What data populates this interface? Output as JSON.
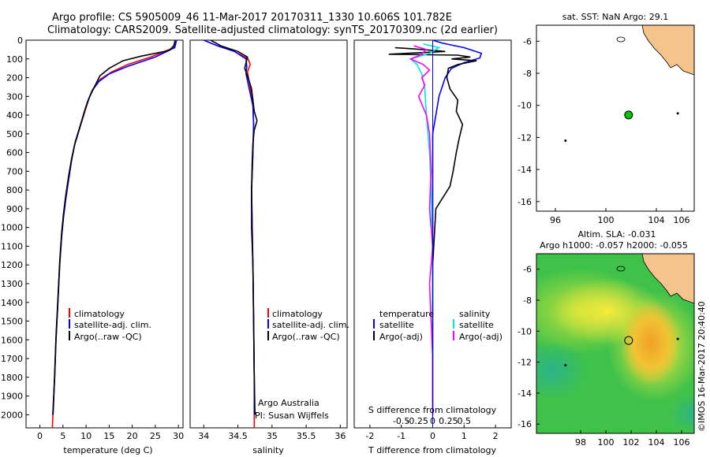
{
  "header": {
    "title1": "Argo profile: CS 5905009_46 11-Mar-2017 20170311_1330 10.606S 101.782E",
    "title2": "Climatology: CARS2009. Satellite-adjusted climatology: synTS_20170309.nc (2d earlier)"
  },
  "colors": {
    "climatology": "#ff0000",
    "satellite": "#0000ff",
    "argo": "#000000",
    "sal_satellite": "#00e5e5",
    "sal_argo": "#ff00ff",
    "land": "#f5c38c",
    "station": "#00c800"
  },
  "chart_data": [
    {
      "id": "temperature",
      "type": "line",
      "xlabel": "temperature (deg C)",
      "ylabel": "",
      "xlim": [
        -3,
        31
      ],
      "ylim": [
        2070,
        0
      ],
      "xticks": [
        0,
        5,
        10,
        15,
        20,
        25,
        30
      ],
      "xtick_labels": [
        "0",
        "5",
        "10",
        "15",
        "20",
        "25",
        "30"
      ],
      "yticks": [
        0,
        100,
        200,
        300,
        400,
        500,
        600,
        700,
        800,
        900,
        1000,
        1100,
        1200,
        1300,
        1400,
        1500,
        1600,
        1700,
        1800,
        1900,
        2000
      ],
      "ytick_labels": [
        "0",
        "100",
        "200",
        "300",
        "400",
        "500",
        "600",
        "700",
        "800",
        "900",
        "1000",
        "1100",
        "1200",
        "1300",
        "1400",
        "1500",
        "1600",
        "1700",
        "1800",
        "1900",
        "2000"
      ],
      "legend": [
        "climatology",
        "satellite-adj. clim.",
        "Argo(..raw -QC)"
      ],
      "series": [
        {
          "name": "climatology",
          "color": "#ff0000",
          "points": [
            [
              29.5,
              0
            ],
            [
              29,
              40
            ],
            [
              24,
              90
            ],
            [
              19,
              130
            ],
            [
              15.5,
              170
            ],
            [
              13,
              210
            ],
            [
              11.5,
              260
            ],
            [
              10.5,
              320
            ],
            [
              9.5,
              400
            ],
            [
              8.5,
              480
            ],
            [
              7.5,
              560
            ],
            [
              6.8,
              650
            ],
            [
              6.2,
              750
            ],
            [
              5.6,
              850
            ],
            [
              5.1,
              950
            ],
            [
              4.7,
              1050
            ],
            [
              4.3,
              1200
            ],
            [
              3.9,
              1400
            ],
            [
              3.5,
              1600
            ],
            [
              3.2,
              1800
            ],
            [
              2.9,
              1950
            ],
            [
              2.7,
              2070
            ]
          ]
        },
        {
          "name": "satellite-adj. clim.",
          "color": "#0000ff",
          "points": [
            [
              29.6,
              0
            ],
            [
              29.2,
              40
            ],
            [
              25,
              90
            ],
            [
              19,
              140
            ],
            [
              15,
              180
            ],
            [
              12.8,
              220
            ],
            [
              11.3,
              270
            ],
            [
              10.3,
              330
            ],
            [
              9.4,
              400
            ],
            [
              8.5,
              480
            ],
            [
              7.5,
              560
            ],
            [
              6.8,
              650
            ],
            [
              6.2,
              750
            ],
            [
              5.6,
              850
            ],
            [
              5.1,
              950
            ],
            [
              4.7,
              1050
            ],
            [
              4.3,
              1200
            ],
            [
              3.9,
              1400
            ],
            [
              3.5,
              1600
            ],
            [
              3.2,
              1800
            ],
            [
              2.9,
              1950
            ],
            [
              2.8,
              2000
            ]
          ]
        },
        {
          "name": "Argo(..raw -QC)",
          "color": "#000000",
          "points": [
            [
              29.3,
              0
            ],
            [
              29,
              30
            ],
            [
              28,
              55
            ],
            [
              22,
              85
            ],
            [
              18,
              110
            ],
            [
              15,
              150
            ],
            [
              13,
              190
            ],
            [
              12,
              240
            ],
            [
              10.8,
              300
            ],
            [
              9.8,
              370
            ],
            [
              8.8,
              450
            ],
            [
              7.7,
              540
            ],
            [
              6.9,
              630
            ],
            [
              6.2,
              730
            ],
            [
              5.6,
              830
            ],
            [
              5.1,
              930
            ],
            [
              4.7,
              1030
            ],
            [
              4.3,
              1180
            ],
            [
              3.9,
              1380
            ],
            [
              3.5,
              1580
            ],
            [
              3.2,
              1780
            ],
            [
              2.95,
              1950
            ],
            [
              2.85,
              2000
            ]
          ]
        }
      ]
    },
    {
      "id": "salinity",
      "type": "line",
      "xlabel": "salinity",
      "ylabel": "",
      "xlim": [
        33.8,
        36.1
      ],
      "ylim": [
        2070,
        0
      ],
      "xticks": [
        34,
        34.5,
        35,
        35.5,
        36
      ],
      "xtick_labels": [
        "34",
        "34.5",
        "35",
        "35.5",
        "36"
      ],
      "legend": [
        "climatology",
        "satellite-adj. clim.",
        "Argo(..raw -QC)"
      ],
      "annotation": [
        "Argo Australia",
        "PI: Susan Wijffels"
      ],
      "series": [
        {
          "name": "climatology",
          "color": "#ff0000",
          "points": [
            [
              34.0,
              0
            ],
            [
              34.2,
              30
            ],
            [
              34.45,
              60
            ],
            [
              34.65,
              100
            ],
            [
              34.68,
              130
            ],
            [
              34.64,
              170
            ],
            [
              34.68,
              250
            ],
            [
              34.72,
              350
            ],
            [
              34.73,
              450
            ],
            [
              34.72,
              600
            ],
            [
              34.7,
              800
            ],
            [
              34.71,
              1000
            ],
            [
              34.72,
              1200
            ],
            [
              34.73,
              1500
            ],
            [
              34.74,
              1800
            ],
            [
              34.74,
              2070
            ]
          ]
        },
        {
          "name": "satellite-adj. clim.",
          "color": "#0000ff",
          "points": [
            [
              34.0,
              0
            ],
            [
              34.2,
              30
            ],
            [
              34.45,
              60
            ],
            [
              34.62,
              100
            ],
            [
              34.63,
              140
            ],
            [
              34.62,
              180
            ],
            [
              34.66,
              250
            ],
            [
              34.72,
              350
            ],
            [
              34.73,
              450
            ],
            [
              34.72,
              600
            ],
            [
              34.7,
              800
            ],
            [
              34.71,
              1000
            ],
            [
              34.72,
              1200
            ],
            [
              34.73,
              1500
            ],
            [
              34.74,
              1800
            ],
            [
              34.74,
              2000
            ]
          ]
        },
        {
          "name": "Argo(..raw -QC)",
          "color": "#000000",
          "points": [
            [
              34.1,
              0
            ],
            [
              34.25,
              30
            ],
            [
              34.5,
              60
            ],
            [
              34.64,
              90
            ],
            [
              34.62,
              120
            ],
            [
              34.6,
              150
            ],
            [
              34.65,
              200
            ],
            [
              34.7,
              260
            ],
            [
              34.72,
              320
            ],
            [
              34.74,
              380
            ],
            [
              34.78,
              430
            ],
            [
              34.74,
              480
            ],
            [
              34.72,
              550
            ],
            [
              34.71,
              650
            ],
            [
              34.7,
              800
            ],
            [
              34.7,
              1000
            ],
            [
              34.72,
              1200
            ],
            [
              34.73,
              1500
            ],
            [
              34.74,
              1800
            ],
            [
              34.75,
              2000
            ]
          ]
        }
      ]
    },
    {
      "id": "difference",
      "type": "line",
      "xlabel": "T difference from climatology",
      "top_label": "S difference from climatology",
      "xlim": [
        -2.5,
        2.5
      ],
      "ylim": [
        2070,
        0
      ],
      "xticks": [
        -2,
        -1,
        0,
        1,
        2
      ],
      "xtick_labels": [
        "-2",
        "-1",
        "0",
        "1",
        "2"
      ],
      "sticks": [
        -1,
        -0.5,
        0,
        0.5,
        1
      ],
      "stick_labels": [
        "-0.5",
        "-0.25",
        "0",
        "0.25",
        "0.5"
      ],
      "legend_temperature": {
        "title": "temperature",
        "items": [
          "satellite",
          "Argo(-adj)"
        ]
      },
      "legend_salinity": {
        "title": "salinity",
        "items": [
          "satellite",
          "Argo(-adj)"
        ]
      },
      "series": [
        {
          "name": "temperature satellite",
          "color": "#0000ff",
          "points": [
            [
              0,
              0
            ],
            [
              0.3,
              15
            ],
            [
              1.0,
              40
            ],
            [
              1.55,
              70
            ],
            [
              1.5,
              95
            ],
            [
              1.0,
              120
            ],
            [
              0.6,
              150
            ],
            [
              0.4,
              200
            ],
            [
              0.2,
              300
            ],
            [
              0.1,
              400
            ],
            [
              0,
              500
            ],
            [
              0,
              800
            ],
            [
              0,
              1200
            ],
            [
              0,
              1600
            ],
            [
              0,
              2000
            ]
          ]
        },
        {
          "name": "temperature Argo(-adj)",
          "color": "#000000",
          "points": [
            [
              -1.2,
              40
            ],
            [
              -0.3,
              50
            ],
            [
              0.4,
              60
            ],
            [
              -1.4,
              75
            ],
            [
              0.8,
              80
            ],
            [
              1.2,
              90
            ],
            [
              0.6,
              100
            ],
            [
              1.4,
              110
            ],
            [
              0.8,
              130
            ],
            [
              0.5,
              150
            ],
            [
              0.45,
              200
            ],
            [
              0.55,
              260
            ],
            [
              0.8,
              320
            ],
            [
              0.75,
              380
            ],
            [
              0.95,
              450
            ],
            [
              0.85,
              520
            ],
            [
              0.75,
              600
            ],
            [
              0.65,
              700
            ],
            [
              0.55,
              780
            ],
            [
              0.1,
              900
            ],
            [
              0,
              1200
            ],
            [
              0,
              1600
            ],
            [
              0,
              2000
            ]
          ]
        },
        {
          "name": "salinity satellite",
          "color": "#00e5e5",
          "points": [
            [
              -0.3,
              20
            ],
            [
              0.2,
              40
            ],
            [
              -0.1,
              70
            ],
            [
              -0.7,
              100
            ],
            [
              -0.5,
              130
            ],
            [
              -0.35,
              180
            ],
            [
              -0.25,
              260
            ],
            [
              -0.2,
              400
            ],
            [
              -0.1,
              600
            ],
            [
              -0.05,
              800
            ],
            [
              0,
              1200
            ],
            [
              0,
              1600
            ],
            [
              0,
              2000
            ]
          ]
        },
        {
          "name": "salinity Argo(-adj)",
          "color": "#ff00ff",
          "points": [
            [
              -0.6,
              30
            ],
            [
              -0.2,
              50
            ],
            [
              -0.4,
              80
            ],
            [
              -0.7,
              100
            ],
            [
              -0.3,
              130
            ],
            [
              -0.1,
              160
            ],
            [
              -0.35,
              200
            ],
            [
              -0.25,
              240
            ],
            [
              -0.45,
              300
            ],
            [
              -0.2,
              400
            ],
            [
              -0.1,
              500
            ],
            [
              -0.05,
              700
            ],
            [
              -0.1,
              900
            ],
            [
              0,
              1100
            ],
            [
              -0.1,
              1300
            ],
            [
              -0.05,
              1500
            ],
            [
              0,
              1700
            ],
            [
              0,
              2000
            ]
          ]
        }
      ]
    },
    {
      "id": "sst_map",
      "type": "scatter",
      "title": "sat. SST: NaN Argo: 29.1",
      "xlim": [
        94.5,
        107
      ],
      "ylim": [
        -16.6,
        -5
      ],
      "xticks": [
        96,
        100,
        104,
        106
      ],
      "xtick_labels": [
        "96",
        "100",
        "104",
        "106"
      ],
      "yticks": [
        -6,
        -8,
        -10,
        -12,
        -14,
        -16
      ],
      "ytick_labels": [
        "-6",
        "-8",
        "-10",
        "-12",
        "-14",
        "-16"
      ],
      "points": [
        {
          "label": "Argo",
          "x": 101.8,
          "y": -10.6
        },
        {
          "label": "island",
          "x": 105.7,
          "y": -10.5
        },
        {
          "label": "island",
          "x": 96.8,
          "y": -12.2
        }
      ]
    },
    {
      "id": "sla_map",
      "type": "heatmap",
      "title": "Altim. SLA: -0.031",
      "subtitle": "Argo h1000: -0.057 h2000: -0.055",
      "side_label": "©IMOS 16-Mar-2017 20:40:40",
      "xlim": [
        94.5,
        107
      ],
      "ylim": [
        -16.6,
        -5
      ],
      "xticks": [
        98,
        100,
        102,
        104,
        106
      ],
      "xtick_labels": [
        "98",
        "100",
        "102",
        "104",
        "106"
      ],
      "yticks": [
        -6,
        -8,
        -10,
        -12,
        -14,
        -16
      ],
      "ytick_labels": [
        "-6",
        "-8",
        "-10",
        "-12",
        "-14",
        "-16"
      ],
      "points": [
        {
          "label": "Argo",
          "x": 101.8,
          "y": -10.6
        }
      ]
    }
  ]
}
